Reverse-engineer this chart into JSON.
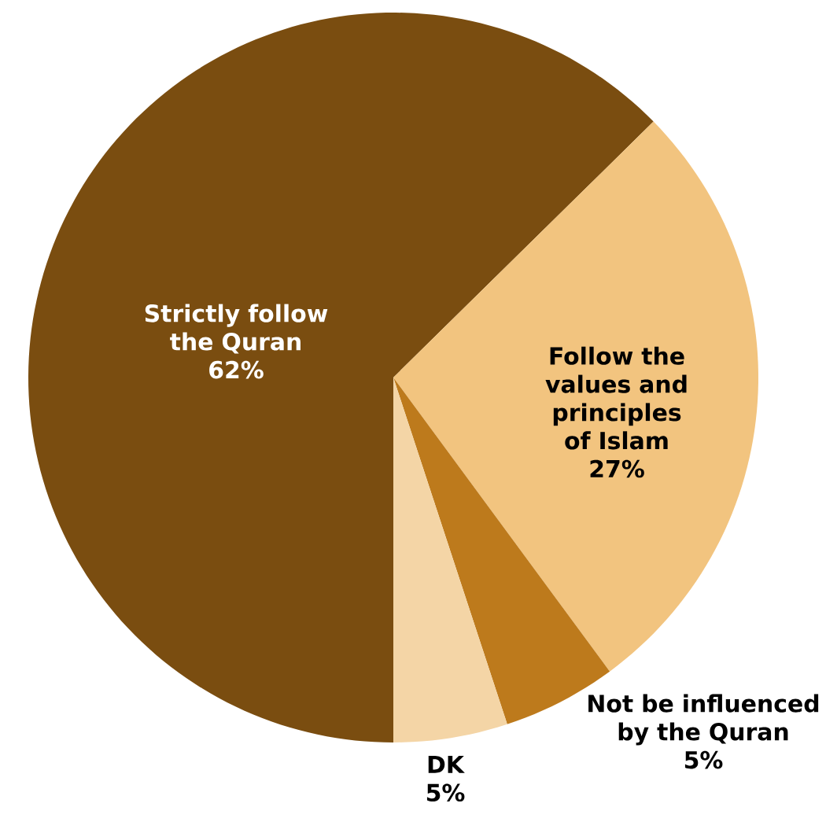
{
  "chart_data": {
    "type": "pie",
    "categories": [
      "Strictly follow the Quran",
      "Follow the values and principles of Islam",
      "Not be influenced by the Quran",
      "DK"
    ],
    "values": [
      62,
      27,
      5,
      5
    ],
    "colors": [
      "#7a4d10",
      "#f2c47f",
      "#bd7a1c",
      "#f4d5a6"
    ],
    "value_labels": [
      "62%",
      "27%",
      "5%",
      "5%"
    ]
  }
}
